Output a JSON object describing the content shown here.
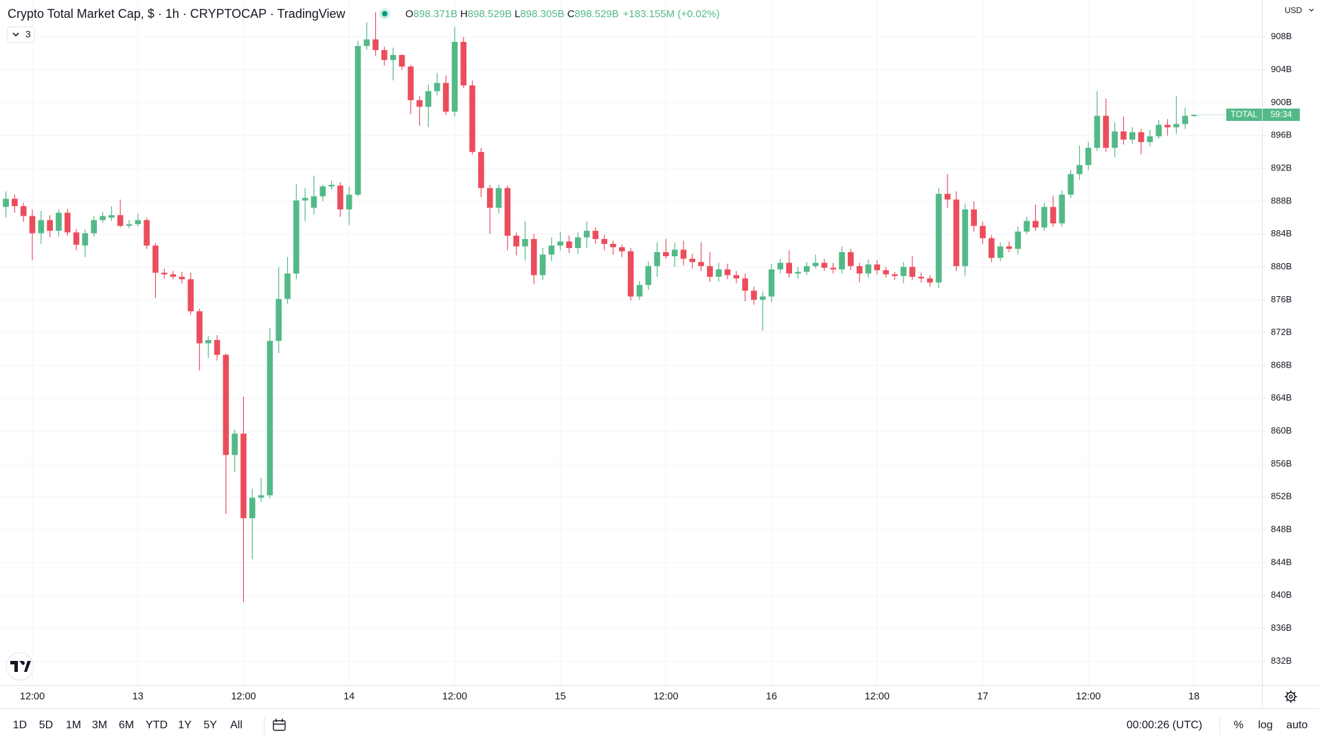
{
  "header": {
    "title": "Crypto Total Market Cap, $ · 1h · CRYPTOCAP · TradingView",
    "ohlc_legend": [
      {
        "label": "O",
        "value": "898.371B"
      },
      {
        "label": "H",
        "value": "898.529B"
      },
      {
        "label": "L",
        "value": "898.305B"
      },
      {
        "label": "C",
        "value": "898.529B"
      }
    ],
    "change": "+183.155M (+0.02%)",
    "indicators_badge": "3"
  },
  "chart_data": {
    "type": "candlestick",
    "categories": [
      null,
      null,
      null,
      "12:00",
      null,
      null,
      null,
      null,
      null,
      null,
      null,
      null,
      null,
      null,
      null,
      "13",
      null,
      null,
      null,
      null,
      null,
      null,
      null,
      null,
      null,
      null,
      null,
      "12:00",
      null,
      null,
      null,
      null,
      null,
      null,
      null,
      null,
      null,
      null,
      null,
      "14",
      null,
      null,
      null,
      null,
      null,
      null,
      null,
      null,
      null,
      null,
      null,
      "12:00",
      null,
      null,
      null,
      null,
      null,
      null,
      null,
      null,
      null,
      null,
      null,
      "15",
      null,
      null,
      null,
      null,
      null,
      null,
      null,
      null,
      null,
      null,
      null,
      "12:00",
      null,
      null,
      null,
      null,
      null,
      null,
      null,
      null,
      null,
      null,
      null,
      "16",
      null,
      null,
      null,
      null,
      null,
      null,
      null,
      null,
      null,
      null,
      null,
      "12:00",
      null,
      null,
      null,
      null,
      null,
      null,
      null,
      null,
      null,
      null,
      null,
      "17",
      null,
      null,
      null,
      null,
      null,
      null,
      null,
      null,
      null,
      null,
      null,
      "12:00",
      null,
      null,
      null,
      null,
      null,
      null,
      null,
      null,
      null,
      null,
      null,
      "18"
    ],
    "open": [
      887.3,
      888.3,
      887.4,
      886.2,
      884.1,
      885.7,
      884.4,
      886.6,
      884.2,
      882.6,
      884.1,
      885.7,
      886,
      886.3,
      885,
      885.2,
      885.7,
      882.6,
      879.3,
      879.1,
      878.8,
      878.5,
      874.6,
      870.7,
      871.1,
      869.3,
      857.1,
      859.7,
      849.4,
      851.9,
      852.2,
      871,
      876.1,
      879.2,
      888.1,
      887.2,
      888.6,
      889.8,
      889.9,
      887,
      888.8,
      906.9,
      907.7,
      906.4,
      905.2,
      905.8,
      904.4,
      900.3,
      899.5,
      901.4,
      902.4,
      898.9,
      907.4,
      902.1,
      894,
      889.6,
      887.2,
      889.6,
      883.8,
      882.5,
      883.4,
      879,
      881.5,
      882.6,
      883.1,
      882.3,
      883.6,
      884.4,
      883.4,
      882.8,
      882.4,
      881.9,
      876.4,
      877.8,
      880.1,
      881.8,
      881.3,
      882.1,
      881,
      880.6,
      880.1,
      878.8,
      879.7,
      879,
      878.6,
      877.1,
      876,
      876.4,
      879.7,
      880.5,
      879.2,
      879.4,
      880.1,
      880.5,
      879.9,
      879.7,
      881.8,
      880.1,
      879.2,
      880.3,
      879.6,
      879.1,
      878.9,
      880,
      878.8,
      878.6,
      878.1,
      888.9,
      888.2,
      880.1,
      887,
      885,
      883.5,
      881.1,
      882.5,
      882.2,
      884.3,
      885.6,
      884.8,
      887.3,
      885.3,
      888.8,
      891.3,
      892.4,
      894.5,
      898.4,
      894.5,
      896.5,
      895.5,
      896.4,
      895.2,
      895.9,
      897.3,
      897,
      897.4,
      898.371
    ],
    "high": [
      889.2,
      888.8,
      887.8,
      887,
      886.8,
      886.3,
      887,
      887.1,
      884.6,
      884.6,
      886.2,
      886.7,
      887.4,
      888.2,
      885.7,
      886.5,
      886,
      882.9,
      879.8,
      879.5,
      879.4,
      879.3,
      874.9,
      871.6,
      871.7,
      869.5,
      860.2,
      864.2,
      853,
      854.3,
      872.6,
      880,
      881.2,
      890.1,
      889.6,
      891.1,
      890,
      890.5,
      890.3,
      889.8,
      907.5,
      909.8,
      911,
      906.8,
      906.7,
      905.9,
      904.6,
      900.8,
      902.2,
      903.6,
      903.3,
      909.2,
      908,
      902.7,
      894.5,
      890,
      890,
      889.9,
      884.2,
      885.6,
      884,
      882.3,
      883.6,
      884.3,
      883.8,
      884.2,
      885.5,
      884.8,
      883.9,
      883.2,
      882.7,
      882.3,
      878.3,
      880.7,
      883,
      883.4,
      882.9,
      883.2,
      881.6,
      883,
      881.8,
      880.5,
      880.4,
      879.5,
      879.2,
      877.6,
      877,
      880.4,
      881,
      882,
      880,
      880.6,
      881.5,
      881,
      880.5,
      882.5,
      882.2,
      880.5,
      880.9,
      880.8,
      880,
      879.4,
      880.6,
      881.3,
      879.3,
      879,
      889.6,
      891.3,
      889.2,
      887.7,
      888,
      885.5,
      883.9,
      883,
      883.1,
      884.9,
      886.1,
      887.6,
      887.8,
      888.7,
      889.3,
      891.8,
      894.8,
      895.2,
      901.4,
      900.5,
      897.6,
      898.3,
      897,
      896.8,
      896.7,
      897.9,
      898,
      900.8,
      899.4,
      898.529
    ],
    "low": [
      886,
      886.6,
      885.5,
      880.8,
      882.8,
      883.6,
      883.7,
      883.8,
      882,
      881.2,
      883.7,
      885.4,
      885.6,
      884.8,
      884.7,
      884.9,
      882.2,
      876.2,
      878.6,
      878.5,
      878,
      874.2,
      867.4,
      868.9,
      868.6,
      849.9,
      855,
      839.2,
      844.4,
      851.4,
      851.8,
      869.5,
      875.5,
      878.5,
      885.6,
      886.4,
      888,
      889.4,
      886.1,
      885.1,
      888.6,
      906.4,
      905.7,
      904.5,
      902.7,
      904,
      898.6,
      897.2,
      897,
      900.9,
      898.5,
      898.3,
      901.8,
      893.7,
      888.5,
      884,
      886.5,
      882,
      881.4,
      880.8,
      877.9,
      878.4,
      880.7,
      882,
      881.7,
      881.6,
      882.3,
      882.8,
      882,
      881.5,
      881.2,
      875.9,
      876,
      877.2,
      878.8,
      881,
      880,
      880.2,
      879.8,
      879.5,
      878.2,
      878.2,
      878.5,
      878,
      875.8,
      875.4,
      872.2,
      875.7,
      879.2,
      878.7,
      878.6,
      879,
      879.8,
      879.5,
      879.2,
      879.2,
      879.6,
      878.1,
      878.7,
      879.1,
      878.7,
      878.4,
      878,
      878.4,
      878.1,
      877.6,
      877.4,
      887.2,
      879.5,
      878.9,
      884.3,
      882.8,
      880.6,
      880.7,
      881.8,
      881.5,
      884,
      884.4,
      884.4,
      884.9,
      884.9,
      888.4,
      890.6,
      891.8,
      894.1,
      894,
      893.4,
      894.9,
      895,
      893.7,
      894.7,
      895.6,
      896,
      896.2,
      896.8,
      898.305
    ],
    "close": [
      888.3,
      887.4,
      886.2,
      884.1,
      885.7,
      884.4,
      886.6,
      884.2,
      882.7,
      884.1,
      885.7,
      886.2,
      886.3,
      885,
      885.2,
      885.7,
      882.6,
      879.3,
      879.1,
      878.8,
      878.5,
      874.6,
      870.7,
      871.1,
      869.3,
      857.1,
      859.7,
      849.4,
      851.9,
      852.2,
      871,
      876.1,
      879.2,
      888.1,
      888.4,
      888.6,
      889.8,
      890,
      887,
      888.8,
      906.9,
      907.7,
      906.4,
      905.2,
      905.8,
      904.4,
      900.3,
      899.5,
      901.4,
      902.4,
      898.9,
      907.4,
      902.1,
      894,
      889.6,
      887.2,
      889.6,
      883.8,
      882.5,
      883.4,
      879,
      881.5,
      882.6,
      883.1,
      882.3,
      883.6,
      884.4,
      883.4,
      882.8,
      882.4,
      881.9,
      876.4,
      877.8,
      880.1,
      881.8,
      881.3,
      882.1,
      881,
      880.6,
      880.1,
      878.8,
      879.7,
      879,
      878.6,
      877.1,
      876,
      876.4,
      879.7,
      880.5,
      879.2,
      879.4,
      880.1,
      880.5,
      879.9,
      879.7,
      881.8,
      880.1,
      879.2,
      880.3,
      879.6,
      879.1,
      878.9,
      880,
      878.8,
      878.6,
      878.1,
      888.9,
      888.2,
      880.1,
      887,
      885,
      883.5,
      881.1,
      882.5,
      882.2,
      884.3,
      885.6,
      884.8,
      887.3,
      885.3,
      888.8,
      891.3,
      892.4,
      894.5,
      898.4,
      894.5,
      896.5,
      895.5,
      896.4,
      895.2,
      895.9,
      897.3,
      897,
      897.4,
      898.4,
      898.529
    ],
    "up_color": "#53b987",
    "down_color": "#eb4d5c",
    "ylim": [
      829.1,
      912.5
    ],
    "yticks": [
      {
        "value": 832,
        "label": "832B"
      },
      {
        "value": 836,
        "label": "836B"
      },
      {
        "value": 840,
        "label": "840B"
      },
      {
        "value": 844,
        "label": "844B"
      },
      {
        "value": 848,
        "label": "848B"
      },
      {
        "value": 852,
        "label": "852B"
      },
      {
        "value": 856,
        "label": "856B"
      },
      {
        "value": 860,
        "label": "860B"
      },
      {
        "value": 864,
        "label": "864B"
      },
      {
        "value": 868,
        "label": "868B"
      },
      {
        "value": 872,
        "label": "872B"
      },
      {
        "value": 876,
        "label": "876B"
      },
      {
        "value": 880,
        "label": "880B"
      },
      {
        "value": 884,
        "label": "884B"
      },
      {
        "value": 888,
        "label": "888B"
      },
      {
        "value": 892,
        "label": "892B"
      },
      {
        "value": 896,
        "label": "896B"
      },
      {
        "value": 900,
        "label": "900B"
      },
      {
        "value": 904,
        "label": "904B"
      },
      {
        "value": 908,
        "label": "908B"
      }
    ],
    "grid": true,
    "currency": "USD",
    "price_tag": {
      "symbol": "TOTAL",
      "countdown": "59:34"
    }
  },
  "toolbar": {
    "ranges": [
      "1D",
      "5D",
      "1M",
      "3M",
      "6M",
      "YTD",
      "1Y",
      "5Y",
      "All"
    ],
    "clock": "00:00:26 (UTC)",
    "options": [
      "%",
      "log",
      "auto"
    ]
  }
}
